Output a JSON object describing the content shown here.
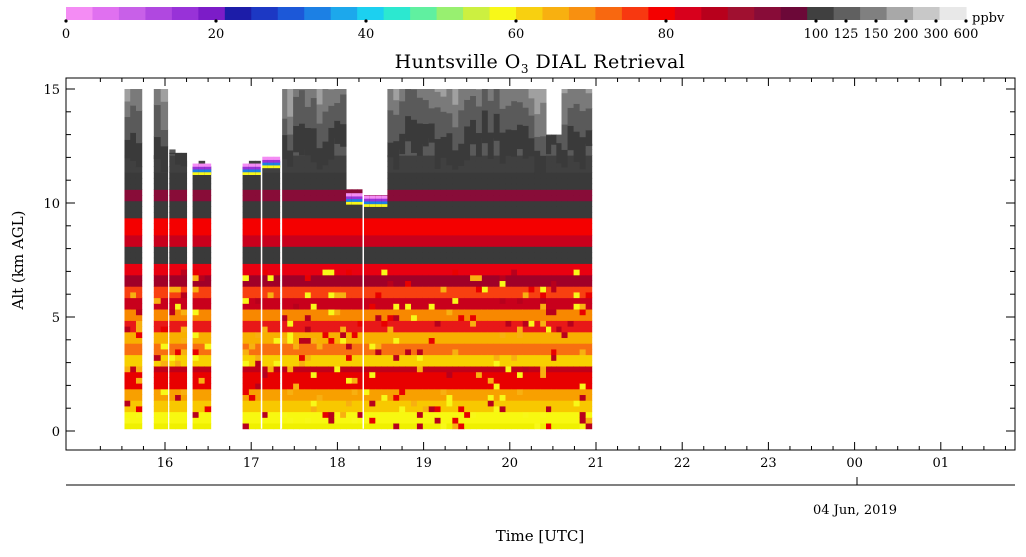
{
  "chart_data": {
    "type": "heatmap",
    "title": "Huntsville O",
    "title_subscript": "3",
    "title_suffix": " DIAL Retrieval",
    "ylabel": "Alt (km AGL)",
    "xlabel": "Time [UTC]",
    "date_label": "04 Jun, 2019",
    "ylim": [
      0,
      15
    ],
    "y_ticks": [
      "0",
      "5",
      "10",
      "15"
    ],
    "x_ticks": [
      "16",
      "17",
      "18",
      "19",
      "20",
      "21",
      "22",
      "23",
      "00",
      "01"
    ],
    "colorbar": {
      "unit": "ppbv",
      "tick_labels": [
        "0",
        "20",
        "40",
        "60",
        "80",
        "100",
        "125",
        "150",
        "200",
        "300",
        "600"
      ],
      "colors": [
        "#f48cf4",
        "#e070f0",
        "#c860e8",
        "#b048e0",
        "#9832d8",
        "#7c1cc8",
        "#1c1ca8",
        "#1c38c4",
        "#1c58d8",
        "#1c80e4",
        "#1ca8ec",
        "#1cd0f0",
        "#2ce8d0",
        "#60f0a0",
        "#98f070",
        "#ccf040",
        "#f8f818",
        "#f8d010",
        "#f8b010",
        "#f89010",
        "#f86810",
        "#f83810",
        "#f40000",
        "#d8001c",
        "#b8001c",
        "#a01030",
        "#880c38",
        "#6c0838",
        "#404040",
        "#606060",
        "#808080",
        "#a8a8a8",
        "#c8c8c8",
        "#e8e8e8"
      ]
    }
  }
}
